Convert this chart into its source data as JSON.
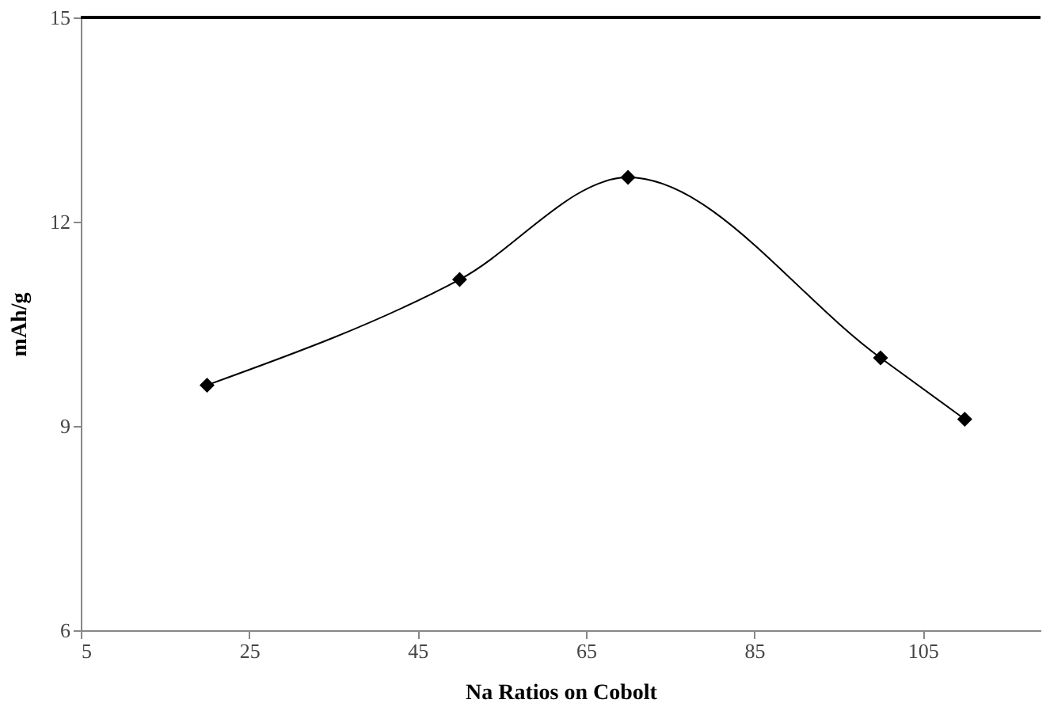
{
  "chart_data": {
    "type": "line",
    "xlabel": "Na Ratios on Cobolt",
    "ylabel": "mAh/g",
    "x": [
      20,
      50,
      70,
      100,
      110
    ],
    "series": [
      {
        "color": "#000000",
        "values": [
          9.6,
          11.15,
          12.65,
          10.0,
          9.1
        ]
      }
    ],
    "xlim": [
      5,
      119
    ],
    "xticks": [
      5,
      25,
      45,
      65,
      85,
      105
    ],
    "ylim": [
      6,
      15
    ],
    "yticks": [
      6,
      9,
      12,
      15
    ],
    "marker": "diamond",
    "line_style": "solid",
    "grid": false,
    "ref_lines": [
      {
        "axis": "y",
        "value": 15,
        "label": null,
        "color": "#000000",
        "line_style": "solid"
      }
    ]
  }
}
